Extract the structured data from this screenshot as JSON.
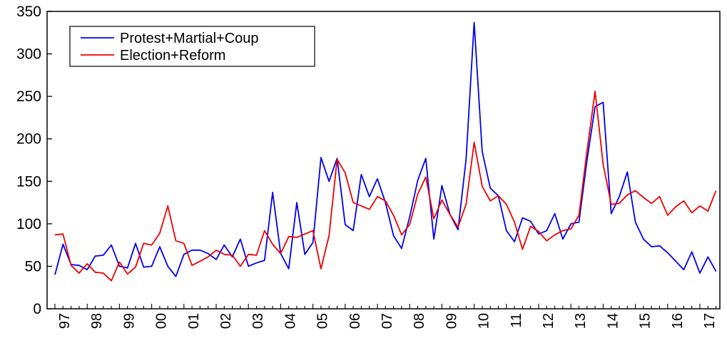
{
  "chart_data": {
    "type": "line",
    "title": "",
    "xlabel": "",
    "ylabel": "",
    "ylim": [
      0,
      350
    ],
    "yticks": [
      0,
      50,
      100,
      150,
      200,
      250,
      300,
      350
    ],
    "xtick_labels": [
      "97",
      "98",
      "99",
      "00",
      "01",
      "02",
      "03",
      "04",
      "05",
      "06",
      "07",
      "08",
      "09",
      "10",
      "11",
      "12",
      "13",
      "14",
      "15",
      "16",
      "17"
    ],
    "x_start_year_label": "97",
    "periods_per_year": 4,
    "grid": false,
    "legend_position": "top-left",
    "series": [
      {
        "name": "Protest+Martial+Coup",
        "color": "#0000ee",
        "values": [
          40,
          76,
          52,
          51,
          46,
          62,
          63,
          75,
          50,
          48,
          77,
          49,
          50,
          73,
          50,
          38,
          64,
          69,
          69,
          65,
          58,
          75,
          61,
          82,
          50,
          54,
          57,
          137,
          65,
          47,
          125,
          64,
          78,
          178,
          150,
          177,
          99,
          92,
          158,
          132,
          153,
          125,
          86,
          71,
          108,
          151,
          177,
          82,
          145,
          111,
          93,
          176,
          337,
          185,
          142,
          133,
          92,
          79,
          107,
          103,
          88,
          92,
          112,
          82,
          100,
          102,
          175,
          238,
          243,
          112,
          132,
          161,
          102,
          82,
          73,
          74,
          66,
          56,
          46,
          67,
          42,
          61,
          44
        ]
      },
      {
        "name": "Election+Reform",
        "color": "#ee0000",
        "values": [
          87,
          88,
          51,
          42,
          53,
          43,
          42,
          33,
          55,
          41,
          49,
          77,
          75,
          89,
          121,
          80,
          77,
          51,
          56,
          61,
          69,
          64,
          63,
          50,
          64,
          63,
          92,
          76,
          65,
          85,
          84,
          88,
          92,
          47,
          86,
          176,
          160,
          125,
          121,
          117,
          132,
          127,
          110,
          87,
          99,
          135,
          155,
          106,
          128,
          111,
          96,
          123,
          196,
          144,
          127,
          133,
          123,
          102,
          70,
          97,
          91,
          80,
          87,
          92,
          94,
          110,
          186,
          256,
          170,
          123,
          124,
          134,
          139,
          131,
          124,
          132,
          110,
          120,
          127,
          113,
          121,
          115,
          139
        ]
      }
    ]
  }
}
